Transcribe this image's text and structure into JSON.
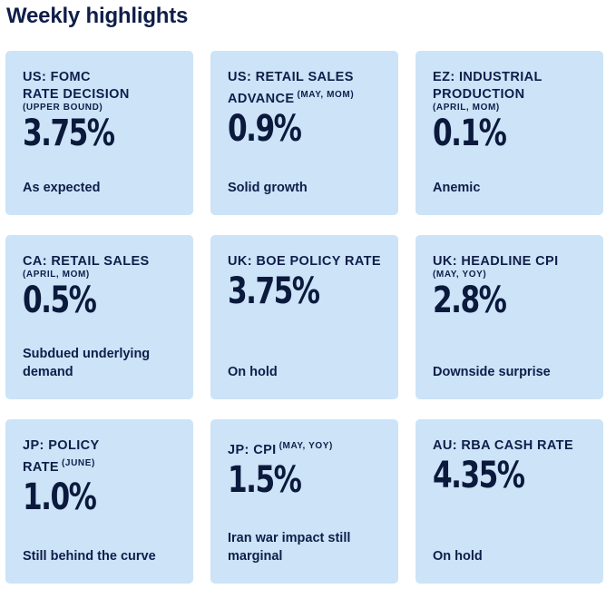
{
  "page_title": "Weekly highlights",
  "cards": [
    {
      "line1": "US: FOMC",
      "line2": "RATE DECISION",
      "sub": "(UPPER BOUND)",
      "sup": "",
      "value": "3.75%",
      "note": "As expected"
    },
    {
      "line1": "US: RETAIL SALES",
      "line2": "ADVANCE",
      "sub": "",
      "sup": "(MAY, MOM)",
      "value": "0.9%",
      "note": "Solid growth"
    },
    {
      "line1": "EZ: INDUSTRIAL",
      "line2": "PRODUCTION",
      "sub": "(APRIL, MOM)",
      "sup": "",
      "value": "0.1%",
      "note": "Anemic"
    },
    {
      "line1": "CA: RETAIL SALES",
      "line2": "",
      "sub": "(APRIL, MOM)",
      "sup": "",
      "value": "0.5%",
      "note": "Subdued underlying demand"
    },
    {
      "line1": "UK: BOE POLICY RATE",
      "line2": "",
      "sub": "",
      "sup": "",
      "value": "3.75%",
      "note": "On hold"
    },
    {
      "line1": "UK: HEADLINE CPI",
      "line2": "",
      "sub": "(MAY, YOY)",
      "sup": "",
      "value": "2.8%",
      "note": "Downside surprise"
    },
    {
      "line1": "JP: POLICY",
      "line2": "RATE",
      "sub": "",
      "sup": "(JUNE)",
      "value": "1.0%",
      "note": "Still behind the curve"
    },
    {
      "line1": "JP: CPI",
      "line2": "",
      "sub": "",
      "sup": "(MAY, YOY)",
      "value": "1.5%",
      "note": "Iran war impact still marginal"
    },
    {
      "line1": "AU: RBA CASH RATE",
      "line2": "",
      "sub": "",
      "sup": "",
      "value": "4.35%",
      "note": "On hold"
    }
  ]
}
